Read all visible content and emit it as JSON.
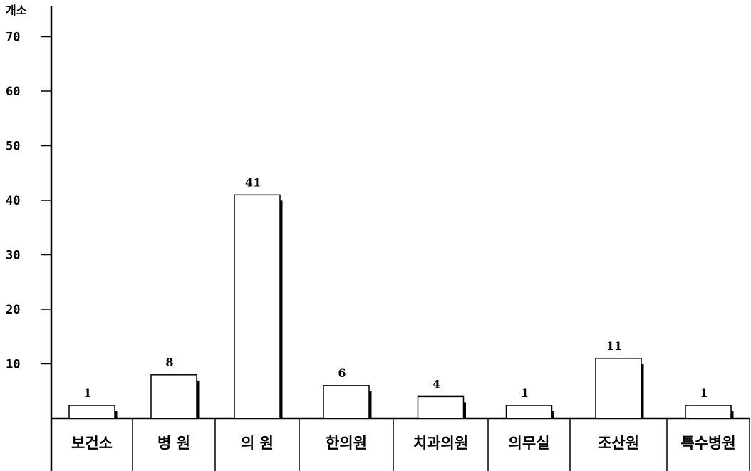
{
  "chart_data": {
    "type": "bar",
    "title": "",
    "xlabel": "",
    "ylabel": "개소",
    "ylim": [
      0,
      75
    ],
    "yticks": [
      10,
      20,
      30,
      40,
      50,
      60,
      70
    ],
    "grid": false,
    "legend": "none",
    "categories": [
      "보건소",
      "병 원",
      "의 원",
      "한의원",
      "치과의원",
      "의무실",
      "조산원",
      "특수병원"
    ],
    "values": [
      1,
      8,
      41,
      6,
      4,
      1,
      11,
      1
    ],
    "value_labels": [
      "1",
      "8",
      "41",
      "6",
      "4",
      "1",
      "11",
      "1"
    ],
    "colors": {
      "bar_fill": "#ffffff",
      "stroke": "#000000"
    }
  }
}
